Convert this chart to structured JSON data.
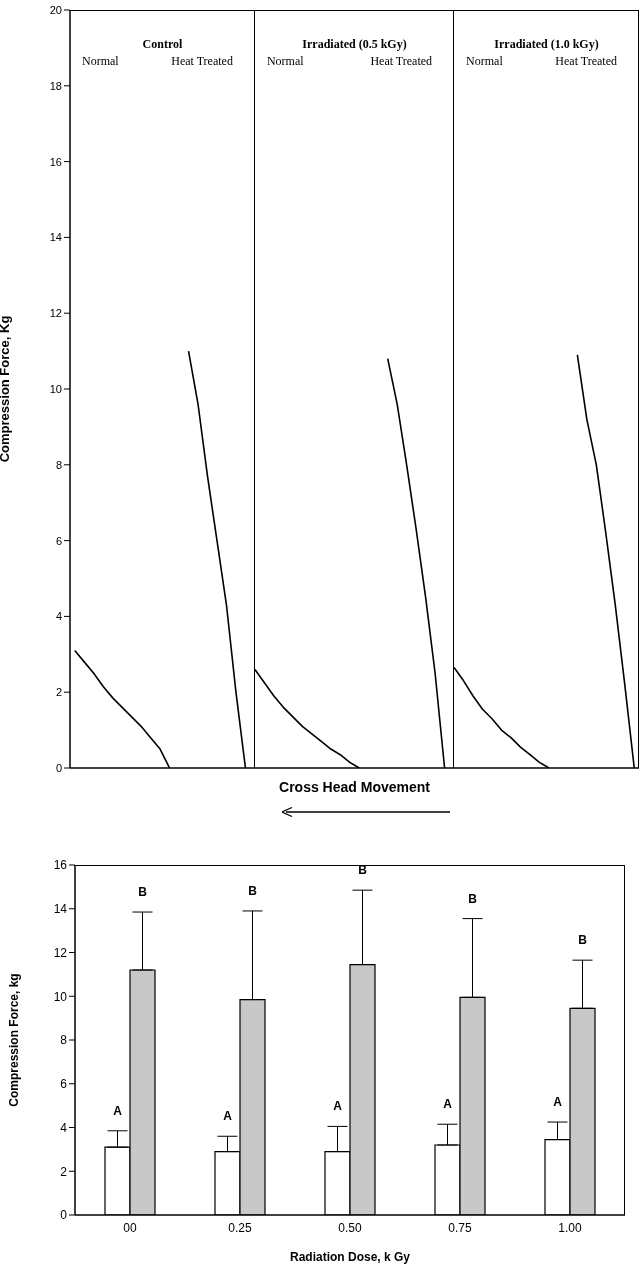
{
  "chart_data": [
    {
      "type": "line",
      "ylabel": "Compression Force, Kg",
      "xlabel": "Cross Head Movement",
      "categories": [
        null,
        null,
        null,
        null,
        null,
        null,
        null,
        null,
        null,
        null,
        null,
        null,
        null,
        null,
        null,
        null,
        null,
        null,
        null,
        null,
        null,
        null,
        null,
        null,
        null,
        null,
        null,
        null,
        null,
        null,
        null,
        null,
        null,
        null,
        null,
        null,
        null,
        null,
        null,
        null,
        null,
        null,
        null,
        null,
        null,
        null,
        null,
        null,
        null,
        null,
        null,
        null,
        null,
        null,
        null,
        null,
        null,
        null,
        null,
        null
      ],
      "ylim": [
        0,
        20
      ],
      "yticks": [
        0,
        2,
        4,
        6,
        8,
        10,
        12,
        14,
        16,
        18,
        20
      ],
      "tick_labels": "y",
      "annotations": [
        "Control",
        "Normal",
        "Heat Treated",
        "Irradiated (0.5 kGy)",
        "Normal",
        "Heat Treated",
        "Irradiated (1.0 kGy)",
        "Normal",
        "Heat Treated"
      ],
      "series": [
        {
          "color": "#000000",
          "values": [
            3.1,
            2.8,
            2.5,
            2.15,
            1.85,
            1.6,
            1.35,
            1.1,
            0.8,
            0.5,
            0,
            null,
            null,
            null,
            null,
            null,
            null,
            null,
            null,
            null,
            null,
            null,
            null,
            null,
            null,
            null,
            null,
            null,
            null,
            null,
            null,
            null,
            null,
            null,
            null,
            null,
            null,
            null,
            null,
            null,
            null,
            null,
            null,
            null,
            null,
            null,
            null,
            null,
            null,
            null,
            null,
            null,
            null,
            null,
            null,
            null,
            null,
            null,
            null,
            null
          ]
        },
        {
          "color": "#000000",
          "values": [
            null,
            null,
            null,
            null,
            null,
            null,
            null,
            null,
            null,
            null,
            null,
            null,
            11.0,
            9.6,
            7.7,
            6.0,
            4.3,
            2.0,
            0,
            null,
            null,
            null,
            null,
            null,
            null,
            null,
            null,
            null,
            null,
            null,
            null,
            null,
            null,
            null,
            null,
            null,
            null,
            null,
            null,
            null,
            null,
            null,
            null,
            null,
            null,
            null,
            null,
            null,
            null,
            null,
            null,
            null,
            null,
            null,
            null,
            null,
            null,
            null,
            null,
            null
          ]
        },
        {
          "color": "#000000",
          "values": [
            null,
            null,
            null,
            null,
            null,
            null,
            null,
            null,
            null,
            null,
            null,
            null,
            null,
            null,
            null,
            null,
            null,
            null,
            null,
            2.6,
            2.25,
            1.9,
            1.6,
            1.35,
            1.1,
            0.9,
            0.7,
            0.5,
            0.35,
            0.15,
            0,
            null,
            null,
            null,
            null,
            null,
            null,
            null,
            null,
            null,
            null,
            null,
            null,
            null,
            null,
            null,
            null,
            null,
            null,
            null,
            null,
            null,
            null,
            null,
            null,
            null,
            null,
            null,
            null,
            null
          ]
        },
        {
          "color": "#000000",
          "values": [
            null,
            null,
            null,
            null,
            null,
            null,
            null,
            null,
            null,
            null,
            null,
            null,
            null,
            null,
            null,
            null,
            null,
            null,
            null,
            null,
            null,
            null,
            null,
            null,
            null,
            null,
            null,
            null,
            null,
            null,
            null,
            null,
            null,
            10.8,
            9.6,
            8.0,
            6.3,
            4.5,
            2.5,
            0,
            null,
            null,
            null,
            null,
            null,
            null,
            null,
            null,
            null,
            null,
            null,
            null,
            null,
            null,
            null,
            null,
            null,
            null,
            null,
            null
          ]
        },
        {
          "color": "#000000",
          "values": [
            null,
            null,
            null,
            null,
            null,
            null,
            null,
            null,
            null,
            null,
            null,
            null,
            null,
            null,
            null,
            null,
            null,
            null,
            null,
            null,
            null,
            null,
            null,
            null,
            null,
            null,
            null,
            null,
            null,
            null,
            null,
            null,
            null,
            null,
            null,
            null,
            null,
            null,
            null,
            null,
            2.65,
            2.3,
            1.9,
            1.55,
            1.3,
            1.0,
            0.8,
            0.55,
            0.35,
            0.15,
            0,
            null,
            null,
            null,
            null,
            null,
            null,
            null,
            null,
            null
          ]
        },
        {
          "color": "#000000",
          "values": [
            null,
            null,
            null,
            null,
            null,
            null,
            null,
            null,
            null,
            null,
            null,
            null,
            null,
            null,
            null,
            null,
            null,
            null,
            null,
            null,
            null,
            null,
            null,
            null,
            null,
            null,
            null,
            null,
            null,
            null,
            null,
            null,
            null,
            null,
            null,
            null,
            null,
            null,
            null,
            null,
            null,
            null,
            null,
            null,
            null,
            null,
            null,
            null,
            null,
            null,
            null,
            null,
            null,
            10.9,
            9.2,
            8.0,
            6.2,
            4.3,
            2.2,
            0
          ]
        }
      ]
    },
    {
      "type": "bar",
      "xlabel": "Radiation Dose, k Gy",
      "ylabel": "Compression Force, kg",
      "categories": [
        "00",
        "0.25",
        "0.50",
        "0.75",
        "1.00"
      ],
      "ylim": [
        0,
        16
      ],
      "yticks": [
        0,
        2,
        4,
        6,
        8,
        10,
        12,
        14,
        16
      ],
      "series": [
        {
          "color": "#ffffff",
          "values": [
            3.1,
            2.9,
            2.9,
            3.2,
            3.45
          ],
          "errors": [
            [
              3.1,
              3.85
            ],
            [
              2.9,
              3.6
            ],
            [
              2.9,
              4.05
            ],
            [
              3.2,
              4.15
            ],
            [
              3.45,
              4.25
            ]
          ]
        },
        {
          "color": "#c8c8c8",
          "values": [
            11.2,
            9.85,
            11.45,
            9.95,
            9.45
          ],
          "errors": [
            [
              11.2,
              13.85
            ],
            [
              9.85,
              13.9
            ],
            [
              11.45,
              14.85
            ],
            [
              9.95,
              13.55
            ],
            [
              9.45,
              11.65
            ]
          ]
        }
      ],
      "annotations": [
        {
          "text": "A",
          "x": "00",
          "y": 3.85
        },
        {
          "text": "A",
          "x": "0.25",
          "y": 3.6
        },
        {
          "text": "A",
          "x": "0.50",
          "y": 4.05
        },
        {
          "text": "A",
          "x": "0.75",
          "y": 4.15
        },
        {
          "text": "A",
          "x": "1.00",
          "y": 4.25
        },
        {
          "text": "B",
          "x": "00",
          "y": 13.85
        },
        {
          "text": "B",
          "x": "0.25",
          "y": 13.9
        },
        {
          "text": "B",
          "x": "0.50",
          "y": 14.85
        },
        {
          "text": "B",
          "x": "0.75",
          "y": 13.55
        },
        {
          "text": "B",
          "x": "1.00",
          "y": 11.65
        }
      ]
    }
  ]
}
